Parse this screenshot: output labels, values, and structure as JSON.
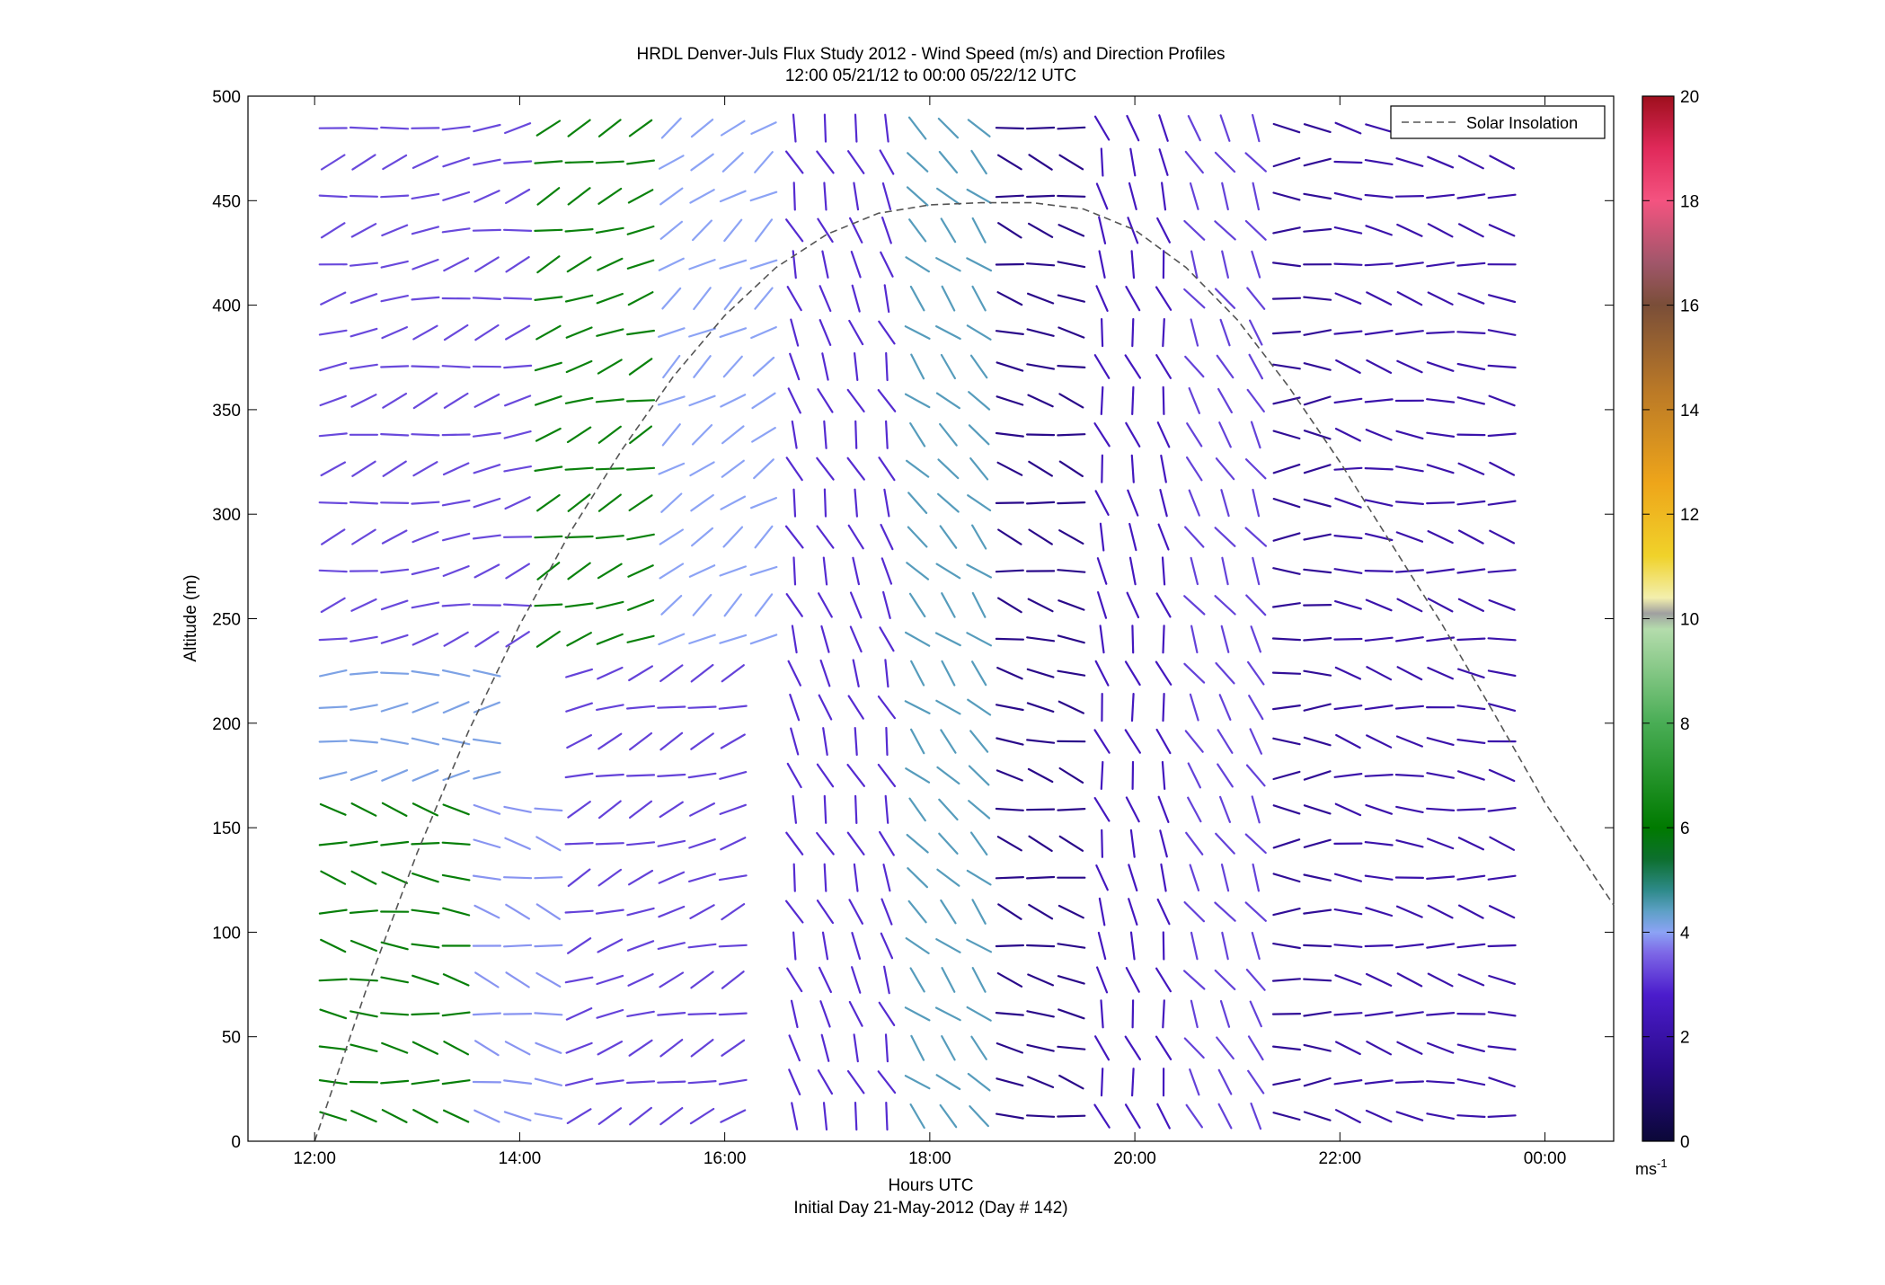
{
  "chart_data": {
    "type": "wind-barb-profile",
    "title": "HRDL Denver-Juls Flux Study 2012 - Wind Speed (m/s) and Direction Profiles",
    "subtitle": "12:00 05/21/12 to 00:00 05/22/12  UTC",
    "xlabel": "Hours UTC",
    "xlabel2": "Initial Day 21-May-2012 (Day # 142)",
    "ylabel": "Altitude (m)",
    "xlim_hours": [
      11.35,
      24.67
    ],
    "ylim": [
      0,
      500
    ],
    "xticks": [
      {
        "hour": 12,
        "label": "12:00"
      },
      {
        "hour": 14,
        "label": "14:00"
      },
      {
        "hour": 16,
        "label": "16:00"
      },
      {
        "hour": 18,
        "label": "18:00"
      },
      {
        "hour": 20,
        "label": "20:00"
      },
      {
        "hour": 22,
        "label": "22:00"
      },
      {
        "hour": 24,
        "label": "00:00"
      }
    ],
    "yticks": [
      "0",
      "50",
      "100",
      "150",
      "200",
      "250",
      "300",
      "350",
      "400",
      "450",
      "500"
    ],
    "legend": {
      "position": "top-right",
      "entries": [
        "Solar Insolation"
      ]
    },
    "colorbar": {
      "min": 0,
      "max": 20,
      "unit": "ms",
      "unit_superscript": "-1",
      "ticks": [
        "0",
        "2",
        "4",
        "6",
        "8",
        "10",
        "12",
        "14",
        "16",
        "18",
        "20"
      ]
    },
    "solar_insolation": {
      "style": "dashed",
      "color": "#555555",
      "points": [
        [
          12.0,
          0
        ],
        [
          12.5,
          72
        ],
        [
          13.0,
          138
        ],
        [
          13.5,
          196
        ],
        [
          14.0,
          247
        ],
        [
          14.5,
          292
        ],
        [
          15.0,
          331
        ],
        [
          15.5,
          366
        ],
        [
          16.0,
          395
        ],
        [
          16.5,
          418
        ],
        [
          17.0,
          434
        ],
        [
          17.5,
          444
        ],
        [
          18.0,
          448
        ],
        [
          18.5,
          449
        ],
        [
          19.0,
          449
        ],
        [
          19.5,
          446
        ],
        [
          20.0,
          436
        ],
        [
          20.5,
          418
        ],
        [
          21.0,
          393
        ],
        [
          21.5,
          361
        ],
        [
          22.0,
          325
        ],
        [
          22.5,
          286
        ],
        [
          23.0,
          247
        ],
        [
          23.5,
          205
        ],
        [
          24.0,
          162
        ],
        [
          24.67,
          113
        ]
      ]
    },
    "wind_regimes": [
      {
        "t0": 12.0,
        "t1": 13.5,
        "h0": 0,
        "h1": 160,
        "dir_deg": 280,
        "speed": 6.2
      },
      {
        "t0": 12.0,
        "t1": 13.8,
        "h0": 160,
        "h1": 230,
        "dir_deg": 265,
        "speed": 4.0
      },
      {
        "t0": 12.0,
        "t1": 14.0,
        "h0": 230,
        "h1": 500,
        "dir_deg": 255,
        "speed": 2.6
      },
      {
        "t0": 13.5,
        "t1": 14.5,
        "h0": 0,
        "h1": 160,
        "dir_deg": 285,
        "speed": 3.6
      },
      {
        "t0": 14.0,
        "t1": 15.3,
        "h0": 230,
        "h1": 500,
        "dir_deg": 250,
        "speed": 6.3
      },
      {
        "t0": 14.5,
        "t1": 16.3,
        "h0": 0,
        "h1": 230,
        "dir_deg": 250,
        "speed": 2.5
      },
      {
        "t0": 15.3,
        "t1": 16.5,
        "h0": 230,
        "h1": 500,
        "dir_deg": 235,
        "speed": 3.8
      },
      {
        "t0": 16.5,
        "t1": 17.8,
        "h0": 0,
        "h1": 500,
        "dir_deg": 340,
        "speed": 2.2
      },
      {
        "t0": 17.8,
        "t1": 18.5,
        "h0": 0,
        "h1": 500,
        "dir_deg": 315,
        "speed": 4.5
      },
      {
        "t0": 18.5,
        "t1": 19.4,
        "h0": 0,
        "h1": 500,
        "dir_deg": 285,
        "speed": 1.0
      },
      {
        "t0": 19.4,
        "t1": 20.5,
        "h0": 0,
        "h1": 500,
        "dir_deg": 345,
        "speed": 1.8
      },
      {
        "t0": 20.5,
        "t1": 21.3,
        "h0": 0,
        "h1": 500,
        "dir_deg": 330,
        "speed": 2.5
      },
      {
        "t0": 21.3,
        "t1": 22.0,
        "h0": 0,
        "h1": 500,
        "dir_deg": 270,
        "speed": 1.2
      },
      {
        "t0": 22.0,
        "t1": 23.9,
        "h0": 0,
        "h1": 500,
        "dir_deg": 280,
        "speed": 1.5
      }
    ]
  }
}
